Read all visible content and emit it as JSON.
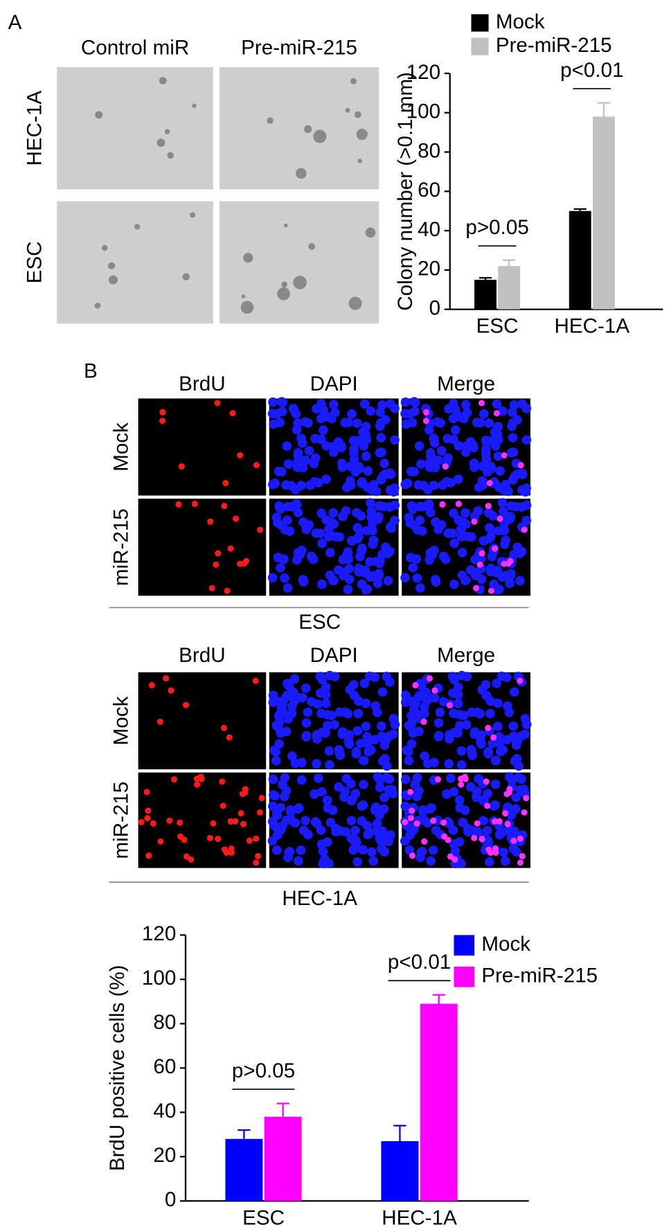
{
  "panels": [
    "A",
    "B"
  ],
  "colony_images": {
    "columns": [
      "Control miR",
      "Pre-miR-215"
    ],
    "rows": [
      "HEC-1A",
      "ESC"
    ]
  },
  "brdu_images": [
    {
      "columns": [
        "BrdU",
        "DAPI",
        "Merge"
      ],
      "rows": [
        "Mock",
        "miR-215"
      ],
      "cell_line": "ESC"
    },
    {
      "columns": [
        "BrdU",
        "DAPI",
        "Merge"
      ],
      "rows": [
        "Mock",
        "miR-215"
      ],
      "cell_line": "HEC-1A"
    }
  ],
  "chart_data": [
    {
      "type": "bar",
      "ylabel": "Colony number (>0.1 mm)",
      "categories": [
        "ESC",
        "HEC-1A"
      ],
      "series": [
        {
          "name": "Mock",
          "color": "#000000",
          "values": [
            15,
            50
          ],
          "errors": [
            1,
            1
          ]
        },
        {
          "name": "Pre-miR-215",
          "color": "#c0c0c0",
          "values": [
            22,
            98
          ],
          "errors": [
            3,
            7
          ]
        }
      ],
      "significance": [
        "p>0.05",
        "p<0.01"
      ],
      "ylim": [
        0,
        120
      ],
      "yticks": [
        0,
        20,
        40,
        60,
        80,
        100,
        120
      ],
      "legend": "top"
    },
    {
      "type": "bar",
      "ylabel": "BrdU positive cells (%)",
      "categories": [
        "ESC",
        "HEC-1A"
      ],
      "series": [
        {
          "name": "Mock",
          "color": "#0000ff",
          "values": [
            28,
            27
          ],
          "errors": [
            4,
            7
          ]
        },
        {
          "name": "Pre-miR-215",
          "color": "#ff00ff",
          "values": [
            38,
            89
          ],
          "errors": [
            6,
            4
          ]
        }
      ],
      "significance": [
        "p>0.05",
        "p<0.01"
      ],
      "ylim": [
        0,
        120
      ],
      "yticks": [
        0,
        20,
        40,
        60,
        80,
        100,
        120
      ],
      "legend": "top-right"
    }
  ]
}
